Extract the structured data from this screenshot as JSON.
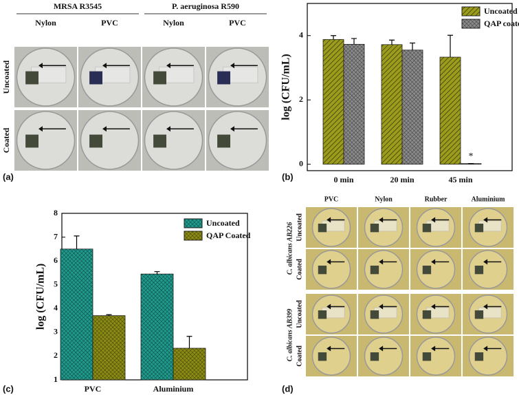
{
  "panel_labels": [
    "(a)",
    "(b)",
    "(c)",
    "(d)"
  ],
  "panel_a": {
    "groups": [
      "MRSA R3545",
      "P. aeruginosa R590"
    ],
    "columns": [
      "Nylon",
      "PVC",
      "Nylon",
      "PVC"
    ],
    "rows": [
      "Uncoated",
      "Coated"
    ]
  },
  "panel_d": {
    "columns": [
      "PVC",
      "Nylon",
      "Rubber",
      "Aluminium"
    ],
    "groups": [
      "C. albicans AB226",
      "C. albicans AB399"
    ],
    "rows": [
      "Uncoated",
      "Coated"
    ]
  },
  "chart_data": [
    {
      "type": "bar",
      "ylabel": "log (CFU/mL)",
      "categories": [
        "0 min",
        "20 min",
        "45 min"
      ],
      "series": [
        {
          "name": "Uncoated",
          "color": "#9c9c1c",
          "pattern": "hatch",
          "values": [
            3.88,
            3.72,
            3.33
          ],
          "errors": [
            0.12,
            0.14,
            0.68
          ]
        },
        {
          "name": "QAP coated",
          "color": "#8a8a8a",
          "pattern": "cross",
          "values": [
            3.73,
            3.55,
            0.02
          ],
          "errors": [
            0.18,
            0.22,
            0
          ]
        }
      ],
      "annotation": "*",
      "ylim": [
        -0.2,
        5
      ],
      "yticks": [
        0,
        2,
        4
      ],
      "legend": "upper right"
    },
    {
      "type": "bar",
      "ylabel": "log (CFU/mL)",
      "categories": [
        "PVC",
        "Aluminium"
      ],
      "series": [
        {
          "name": "Uncoated",
          "color": "#1f9a8c",
          "pattern": "cross",
          "values": [
            6.5,
            5.45
          ],
          "errors": [
            0.55,
            0.1
          ]
        },
        {
          "name": "QAP Coated",
          "color": "#8c8c14",
          "pattern": "cross",
          "values": [
            3.7,
            2.33
          ],
          "errors": [
            0.04,
            0.5
          ]
        }
      ],
      "ylim": [
        1,
        8
      ],
      "yticks": [
        1,
        2,
        3,
        4,
        5,
        6,
        7,
        8
      ],
      "legend": "upper right"
    }
  ]
}
